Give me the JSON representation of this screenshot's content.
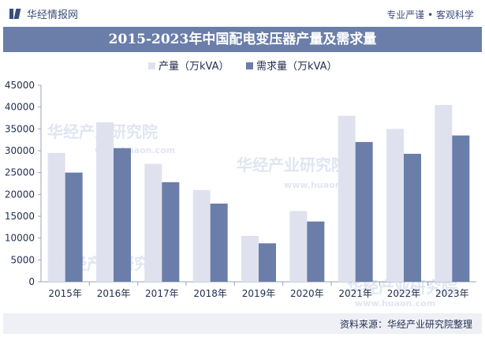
{
  "header": {
    "brand": "华经情报网",
    "tagline": "专业严谨 • 客观科学"
  },
  "footer": {
    "source": "资料来源：华经产业研究院整理"
  },
  "watermark": {
    "cn": "华经产业研究院",
    "url": "www.huaon.com"
  },
  "colors": {
    "title_bg": "#6a7ea9",
    "production": "#dfe2ee",
    "demand": "#6a7ea9",
    "footer_bg": "#eef0f6"
  },
  "chart_data": {
    "type": "bar",
    "title": "2015-2023年中国配电变压器产量及需求量",
    "categories": [
      "2015年",
      "2016年",
      "2017年",
      "2018年",
      "2019年",
      "2020年",
      "2021年",
      "2022年",
      "2023年"
    ],
    "series": [
      {
        "name": "产量（万kVA）",
        "values": [
          29500,
          36500,
          27000,
          21000,
          10500,
          16200,
          38000,
          35000,
          40500
        ]
      },
      {
        "name": "需求量（万kVA）",
        "values": [
          25000,
          30600,
          22800,
          17900,
          8800,
          13800,
          32000,
          29300,
          33500
        ]
      }
    ],
    "yticks": [
      0,
      5000,
      10000,
      15000,
      20000,
      25000,
      30000,
      35000,
      40000,
      45000
    ],
    "ylim": [
      0,
      45000
    ],
    "legend_position": "top-center",
    "grid": false
  }
}
